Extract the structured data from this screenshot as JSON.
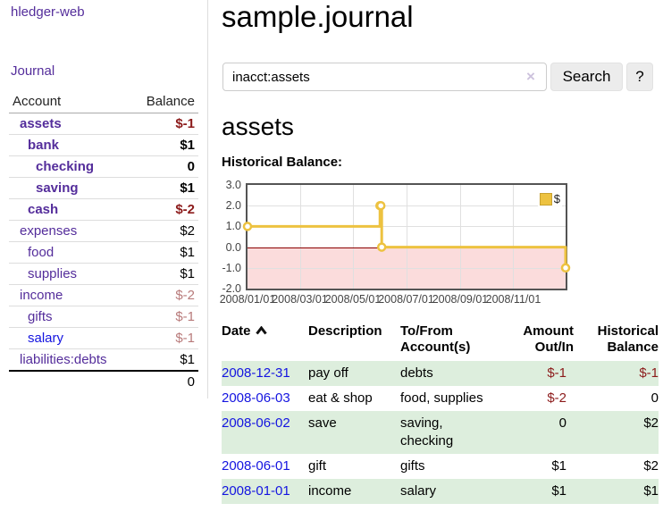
{
  "app": {
    "title": "hledger-web"
  },
  "sidebar": {
    "journal_link": "Journal",
    "accounts": {
      "header_account": "Account",
      "header_balance": "Balance",
      "rows": [
        {
          "name": "assets",
          "indent": 1,
          "bold": true,
          "balance": "$-1",
          "balance_color": "neg-strong"
        },
        {
          "name": "bank",
          "indent": 2,
          "bold": true,
          "balance": "$1",
          "balance_color": "normal"
        },
        {
          "name": "checking",
          "indent": 3,
          "bold": true,
          "balance": "0",
          "balance_color": "normal"
        },
        {
          "name": "saving",
          "indent": 3,
          "bold": true,
          "balance": "$1",
          "balance_color": "normal"
        },
        {
          "name": "cash",
          "indent": 2,
          "bold": true,
          "balance": "$-2",
          "balance_color": "neg-strong"
        },
        {
          "name": "expenses",
          "indent": 1,
          "bold": false,
          "balance": "$2",
          "balance_color": "normal"
        },
        {
          "name": "food",
          "indent": 2,
          "bold": false,
          "balance": "$1",
          "balance_color": "normal"
        },
        {
          "name": "supplies",
          "indent": 2,
          "bold": false,
          "balance": "$1",
          "balance_color": "normal"
        },
        {
          "name": "income",
          "indent": 1,
          "bold": false,
          "balance": "$-2",
          "balance_color": "neg-muted"
        },
        {
          "name": "gifts",
          "indent": 2,
          "bold": false,
          "balance": "$-1",
          "balance_color": "neg-muted"
        },
        {
          "name": "salary",
          "indent": 2,
          "bold": false,
          "balance": "$-1",
          "balance_color": "neg-muted",
          "link_color": "blue"
        },
        {
          "name": "liabilities:debts",
          "indent": 1,
          "bold": false,
          "balance": "$1",
          "balance_color": "normal"
        }
      ],
      "total": "0"
    }
  },
  "main": {
    "title": "sample.journal",
    "search": {
      "value": "inacct:assets",
      "clear_icon": "×",
      "search_button": "Search",
      "help_button": "?"
    },
    "account_heading": "assets",
    "chart_heading": "Historical Balance:"
  },
  "chart_data": {
    "type": "line",
    "style": "step",
    "title": "Historical Balance",
    "x_range": [
      "2008-01-01",
      "2008-12-31"
    ],
    "ylim": [
      -2,
      3
    ],
    "y_tick_labels": [
      "3.0",
      "2.0",
      "1.0",
      "0.0",
      "-1.0",
      "-2.0"
    ],
    "x_tick_labels": [
      "2008/01/01",
      "2008/03/01",
      "2008/05/01",
      "2008/07/01",
      "2008/09/01",
      "2008/11/01"
    ],
    "grid": true,
    "legend": {
      "position": "top-right",
      "label": "$"
    },
    "series": [
      {
        "name": "$",
        "color": "#edc240",
        "points": [
          {
            "date": "2008-01-01",
            "value": 1
          },
          {
            "date": "2008-06-01",
            "value": 2
          },
          {
            "date": "2008-06-02",
            "value": 2
          },
          {
            "date": "2008-06-03",
            "value": 0
          },
          {
            "date": "2008-12-31",
            "value": -1
          }
        ]
      }
    ],
    "negative_region_color": "#fbdcdc",
    "zero_line_color": "#8b0000"
  },
  "register": {
    "headers": {
      "date": "Date",
      "description": "Description",
      "accounts": "To/From Account(s)",
      "amount": "Amount Out/In",
      "balance": "Historical Balance"
    },
    "sort_indicator": "up",
    "rows": [
      {
        "date": "2008-12-31",
        "description": "pay off",
        "accounts": [
          "debts"
        ],
        "amount": "$-1",
        "amount_negative": true,
        "balance": "$-1",
        "balance_negative": true
      },
      {
        "date": "2008-06-03",
        "description": "eat & shop",
        "accounts": [
          "food",
          "supplies"
        ],
        "amount": "$-2",
        "amount_negative": true,
        "balance": "0",
        "balance_negative": false
      },
      {
        "date": "2008-06-02",
        "description": "save",
        "accounts": [
          "saving",
          "checking"
        ],
        "amount": "0",
        "amount_negative": false,
        "balance": "$2",
        "balance_negative": false
      },
      {
        "date": "2008-06-01",
        "description": "gift",
        "accounts": [
          "gifts"
        ],
        "amount": "$1",
        "amount_negative": false,
        "balance": "$2",
        "balance_negative": false
      },
      {
        "date": "2008-01-01",
        "description": "income",
        "accounts": [
          "salary"
        ],
        "amount": "$1",
        "amount_negative": false,
        "balance": "$1",
        "balance_negative": false
      }
    ]
  },
  "colors": {
    "link_purple": "#542d9b",
    "link_blue": "#1414e0",
    "negative_strong": "#8c1b1b",
    "negative_muted": "#b87a7a",
    "row_stripe_green": "#ddeedd",
    "chart_line": "#edc240",
    "chart_negative_bg": "#fbdcdc",
    "chart_zero_line": "#8b0000",
    "button_bg": "#ececec"
  }
}
